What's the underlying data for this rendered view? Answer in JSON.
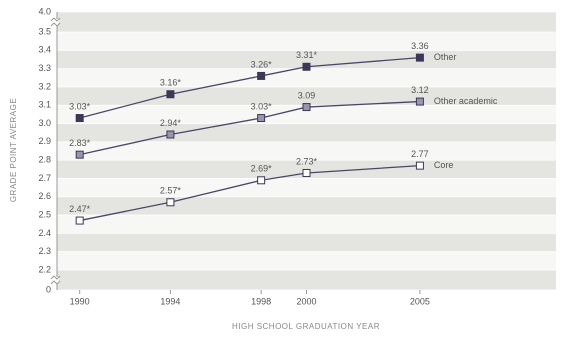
{
  "chart_data": {
    "type": "line",
    "x_label": "HIGH SCHOOL GRADUATION YEAR",
    "y_label": "GRADE POINT AVERAGE",
    "x": [
      1990,
      1994,
      1998,
      2000,
      2005
    ],
    "xlim": [
      1989,
      2011
    ],
    "xticks": [
      1990,
      1994,
      1998,
      2000,
      2005
    ],
    "ylim": [
      0,
      4
    ],
    "y_breaks": [
      [
        0,
        2.2
      ],
      [
        3.5,
        4
      ]
    ],
    "yticks": [
      0,
      2.2,
      2.3,
      2.4,
      2.5,
      2.6,
      2.7,
      2.8,
      2.9,
      {
        "value": 3,
        "label": "3.0"
      },
      3.1,
      3.2,
      3.3,
      3.4,
      3.5,
      {
        "value": 4,
        "label": "4.0"
      }
    ],
    "grid": true,
    "series": [
      {
        "name": "Other",
        "color": "#3b3858",
        "values": [
          3.03,
          3.16,
          3.26,
          3.31,
          3.36
        ],
        "value_labels": [
          "3.03*",
          "3.16*",
          "3.26*",
          "3.31*",
          "3.36"
        ]
      },
      {
        "name": "Other academic",
        "color": "#9896ae",
        "values": [
          2.83,
          2.94,
          3.03,
          3.09,
          3.12
        ],
        "value_labels": [
          "2.83*",
          "2.94*",
          "3.03*",
          "3.09",
          "3.12"
        ]
      },
      {
        "name": "Core",
        "color": "#ffffff",
        "values": [
          2.47,
          2.57,
          2.69,
          2.73,
          2.77
        ],
        "value_labels": [
          "2.47*",
          "2.57*",
          "2.69*",
          "2.73*",
          "2.77"
        ]
      }
    ]
  }
}
